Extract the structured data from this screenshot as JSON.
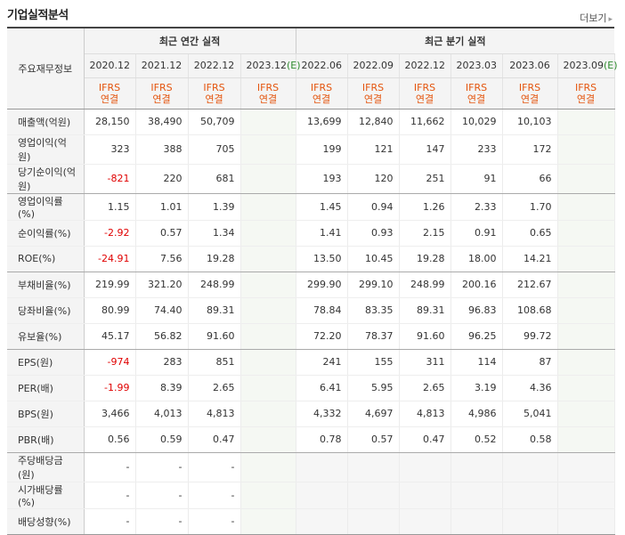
{
  "title": "기업실적분석",
  "more_label": "더보기",
  "corner_label": "주요재무정보",
  "groups": {
    "annual": "최근 연간 실적",
    "quarter": "최근 분기 실적"
  },
  "periods": [
    "2020.12",
    "2021.12",
    "2022.12",
    "2023.12",
    "2022.06",
    "2022.09",
    "2022.12",
    "2023.03",
    "2023.06",
    "2023.09"
  ],
  "est_suffix": "(E)",
  "acct_line1": "IFRS",
  "acct_line2": "연결",
  "rows": [
    {
      "label": "매출액(억원)",
      "values": [
        "28,150",
        "38,490",
        "50,709",
        "",
        "13,699",
        "12,840",
        "11,662",
        "10,029",
        "10,103",
        ""
      ]
    },
    {
      "label": "영업이익(억원)",
      "values": [
        "323",
        "388",
        "705",
        "",
        "199",
        "121",
        "147",
        "233",
        "172",
        ""
      ]
    },
    {
      "label": "당기순이익(억원)",
      "values": [
        "-821",
        "220",
        "681",
        "",
        "193",
        "120",
        "251",
        "91",
        "66",
        ""
      ]
    },
    {
      "label": "영업이익률(%)",
      "values": [
        "1.15",
        "1.01",
        "1.39",
        "",
        "1.45",
        "0.94",
        "1.26",
        "2.33",
        "1.70",
        ""
      ]
    },
    {
      "label": "순이익률(%)",
      "values": [
        "-2.92",
        "0.57",
        "1.34",
        "",
        "1.41",
        "0.93",
        "2.15",
        "0.91",
        "0.65",
        ""
      ]
    },
    {
      "label": "ROE(%)",
      "values": [
        "-24.91",
        "7.56",
        "19.28",
        "",
        "13.50",
        "10.45",
        "19.28",
        "18.00",
        "14.21",
        ""
      ]
    },
    {
      "label": "부채비율(%)",
      "values": [
        "219.99",
        "321.20",
        "248.99",
        "",
        "299.90",
        "299.10",
        "248.99",
        "200.16",
        "212.67",
        ""
      ]
    },
    {
      "label": "당좌비율(%)",
      "values": [
        "80.99",
        "74.40",
        "89.31",
        "",
        "78.84",
        "83.35",
        "89.31",
        "96.83",
        "108.68",
        ""
      ]
    },
    {
      "label": "유보율(%)",
      "values": [
        "45.17",
        "56.82",
        "91.60",
        "",
        "72.20",
        "78.37",
        "91.60",
        "96.25",
        "99.72",
        ""
      ]
    },
    {
      "label": "EPS(원)",
      "values": [
        "-974",
        "283",
        "851",
        "",
        "241",
        "155",
        "311",
        "114",
        "87",
        ""
      ]
    },
    {
      "label": "PER(배)",
      "values": [
        "-1.99",
        "8.39",
        "2.65",
        "",
        "6.41",
        "5.95",
        "2.65",
        "3.19",
        "4.36",
        ""
      ]
    },
    {
      "label": "BPS(원)",
      "values": [
        "3,466",
        "4,013",
        "4,813",
        "",
        "4,332",
        "4,697",
        "4,813",
        "4,986",
        "5,041",
        ""
      ]
    },
    {
      "label": "PBR(배)",
      "values": [
        "0.56",
        "0.59",
        "0.47",
        "",
        "0.78",
        "0.57",
        "0.47",
        "0.52",
        "0.58",
        ""
      ]
    },
    {
      "label": "주당배당금(원)",
      "values": [
        "-",
        "-",
        "-",
        "",
        "",
        "",
        "",
        "",
        "",
        ""
      ]
    },
    {
      "label": "시가배당률(%)",
      "values": [
        "-",
        "-",
        "-",
        "",
        "",
        "",
        "",
        "",
        "",
        ""
      ]
    },
    {
      "label": "배당성향(%)",
      "values": [
        "-",
        "-",
        "-",
        "",
        "",
        "",
        "",
        "",
        "",
        ""
      ]
    }
  ]
}
